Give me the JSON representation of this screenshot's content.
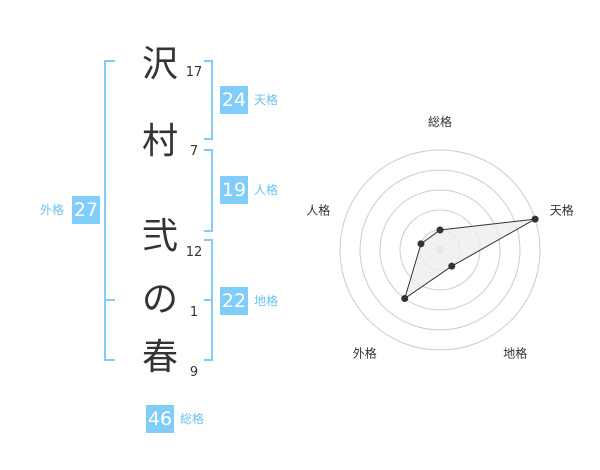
{
  "name": {
    "chars": [
      {
        "char": "沢",
        "strokes": "17"
      },
      {
        "char": "村",
        "strokes": "7"
      },
      {
        "char": "弐",
        "strokes": "12"
      },
      {
        "char": "の",
        "strokes": "1"
      },
      {
        "char": "春",
        "strokes": "9"
      }
    ]
  },
  "kaku": {
    "tenkaku": {
      "label": "天格",
      "value": "24"
    },
    "jinkaku": {
      "label": "人格",
      "value": "19"
    },
    "chikaku": {
      "label": "地格",
      "value": "22"
    },
    "gaikaku": {
      "label": "外格",
      "value": "27"
    },
    "soukaku": {
      "label": "総格",
      "value": "46"
    }
  },
  "chart_data": {
    "type": "radar",
    "axes": [
      "総格",
      "天格",
      "地格",
      "外格",
      "人格"
    ],
    "values": [
      1,
      5,
      1,
      3,
      1
    ],
    "range": [
      0,
      5
    ],
    "rings": 5,
    "colors": {
      "line": "#333333",
      "fill": "#eeeeee",
      "grid": "#cccccc",
      "box": "#7fcdf8",
      "label": "#6cc0f0"
    }
  }
}
